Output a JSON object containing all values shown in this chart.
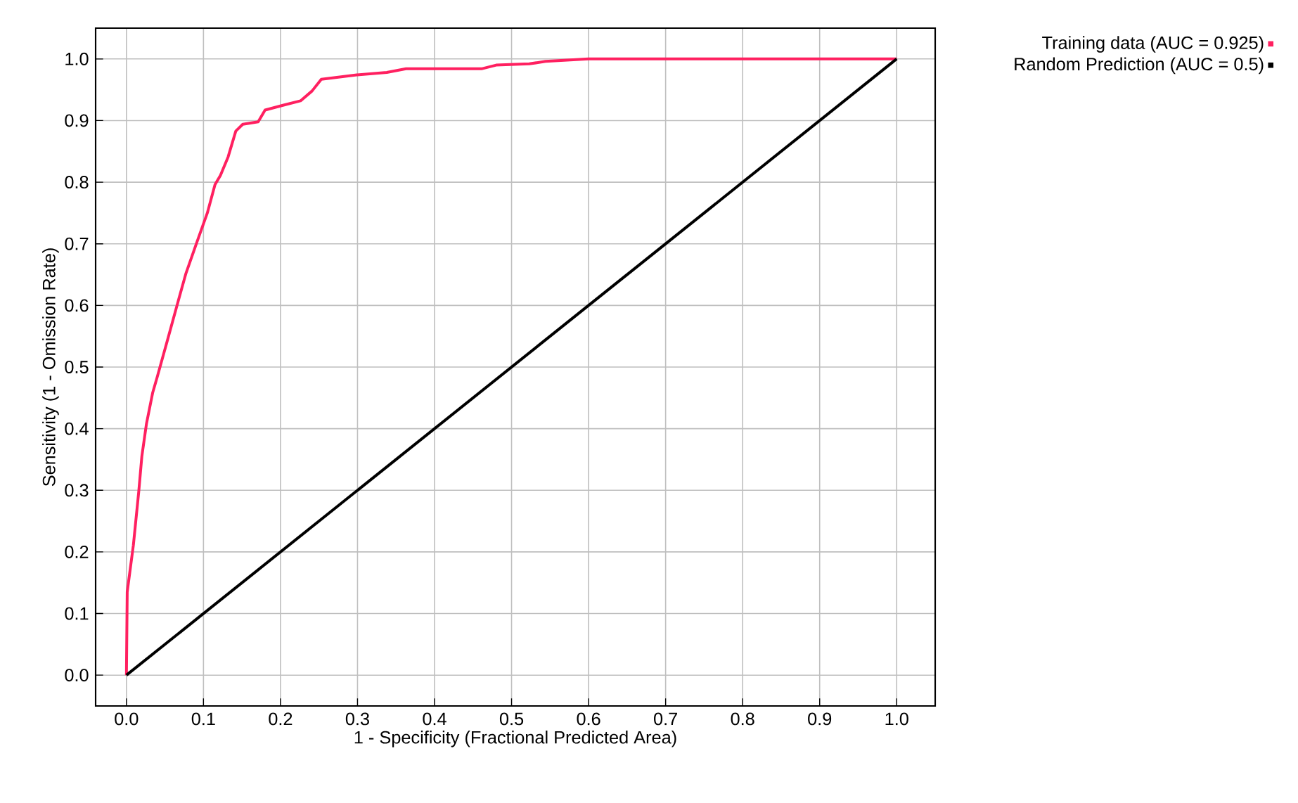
{
  "chart_data": {
    "type": "line",
    "xlabel": "1 - Specificity (Fractional Predicted Area)",
    "ylabel": "Sensitivity (1 - Omission Rate)",
    "xlim": [
      -0.04,
      1.05
    ],
    "ylim": [
      -0.05,
      1.05
    ],
    "xticks": [
      {
        "value": 0,
        "label": "0.0"
      },
      0.1,
      0.2,
      0.3,
      0.4,
      0.5,
      0.6,
      0.7,
      0.8,
      0.9,
      {
        "value": 1,
        "label": "1.0"
      }
    ],
    "yticks": [
      {
        "value": 0,
        "label": "0.0"
      },
      0.1,
      0.2,
      0.3,
      0.4,
      0.5,
      0.6,
      0.7,
      0.8,
      0.9,
      {
        "value": 1,
        "label": "1.0"
      }
    ],
    "grid": true,
    "legend": "top right",
    "marker": "none",
    "line_style": "solid",
    "series": [
      {
        "name": "Training data (AUC = 0.925)",
        "color": "#ff2060",
        "x": [
          0,
          0.001,
          0.009,
          0.016,
          0.02,
          0.026,
          0.034,
          0.04,
          0.052,
          0.067,
          0.077,
          0.091,
          0.105,
          0.115,
          0.122,
          0.132,
          0.142,
          0.151,
          0.171,
          0.18,
          0.204,
          0.226,
          0.241,
          0.253,
          0.299,
          0.338,
          0.363,
          0.461,
          0.48,
          0.523,
          0.544,
          0.6,
          1.0
        ],
        "values": [
          0,
          0.135,
          0.211,
          0.298,
          0.355,
          0.408,
          0.458,
          0.484,
          0.538,
          0.606,
          0.651,
          0.701,
          0.75,
          0.796,
          0.811,
          0.841,
          0.883,
          0.894,
          0.898,
          0.917,
          0.925,
          0.932,
          0.948,
          0.967,
          0.974,
          0.978,
          0.984,
          0.984,
          0.99,
          0.992,
          0.996,
          1.0,
          1.0
        ]
      },
      {
        "name": "Random Prediction (AUC = 0.5)",
        "color": "#000000",
        "x": [
          0,
          1
        ],
        "values": [
          0,
          1
        ]
      }
    ]
  }
}
